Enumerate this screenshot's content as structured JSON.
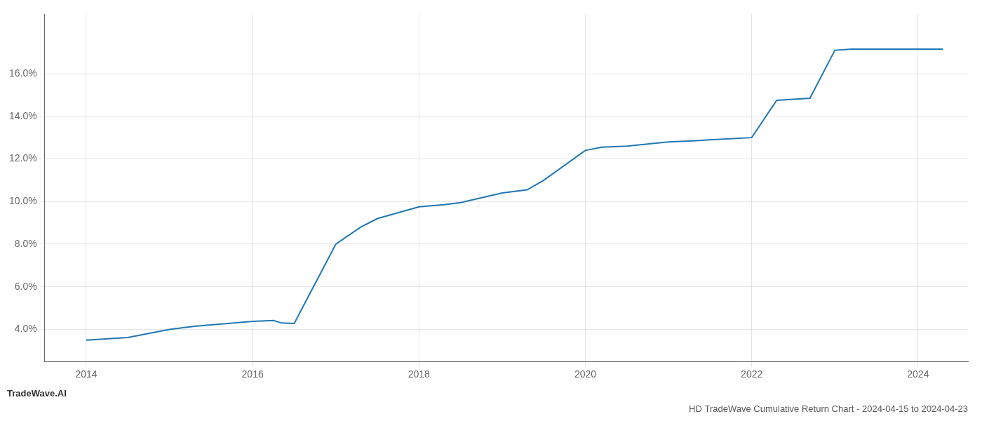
{
  "chart_data": {
    "type": "line",
    "title": "HD TradeWave Cumulative Return Chart - 2024-04-15 to 2024-04-23",
    "annotations": [
      "TradeWave.AI"
    ],
    "x": [
      2014.0,
      2014.5,
      2015.0,
      2015.3,
      2016.0,
      2016.25,
      2016.35,
      2016.5,
      2017.0,
      2017.3,
      2017.5,
      2018.0,
      2018.3,
      2018.5,
      2019.0,
      2019.3,
      2019.5,
      2020.0,
      2020.2,
      2020.5,
      2021.0,
      2021.3,
      2021.5,
      2022.0,
      2022.3,
      2022.5,
      2022.7,
      2023.0,
      2023.2,
      2023.5,
      2024.0,
      2024.3
    ],
    "values": [
      3.5,
      3.62,
      4.0,
      4.15,
      4.38,
      4.42,
      4.3,
      4.28,
      8.0,
      8.8,
      9.2,
      9.75,
      9.85,
      9.95,
      10.4,
      10.55,
      11.0,
      12.4,
      12.55,
      12.6,
      12.8,
      12.85,
      12.9,
      13.0,
      14.75,
      14.8,
      14.85,
      17.1,
      17.15,
      17.15,
      17.15,
      17.15
    ],
    "color": "#1f77b4",
    "xlim": [
      2013.5,
      2024.6
    ],
    "ylim": [
      2.5,
      18.8
    ],
    "xticks": [
      2014,
      2016,
      2018,
      2020,
      2022,
      2024
    ],
    "yticks": [
      {
        "value": 4.0,
        "label": "4.0%"
      },
      {
        "value": 6.0,
        "label": "6.0%"
      },
      {
        "value": 8.0,
        "label": "8.0%"
      },
      {
        "value": 10.0,
        "label": "10.0%"
      },
      {
        "value": 12.0,
        "label": "12.0%"
      },
      {
        "value": 14.0,
        "label": "14.0%"
      },
      {
        "value": 16.0,
        "label": "16.0%"
      }
    ],
    "grid": true
  }
}
